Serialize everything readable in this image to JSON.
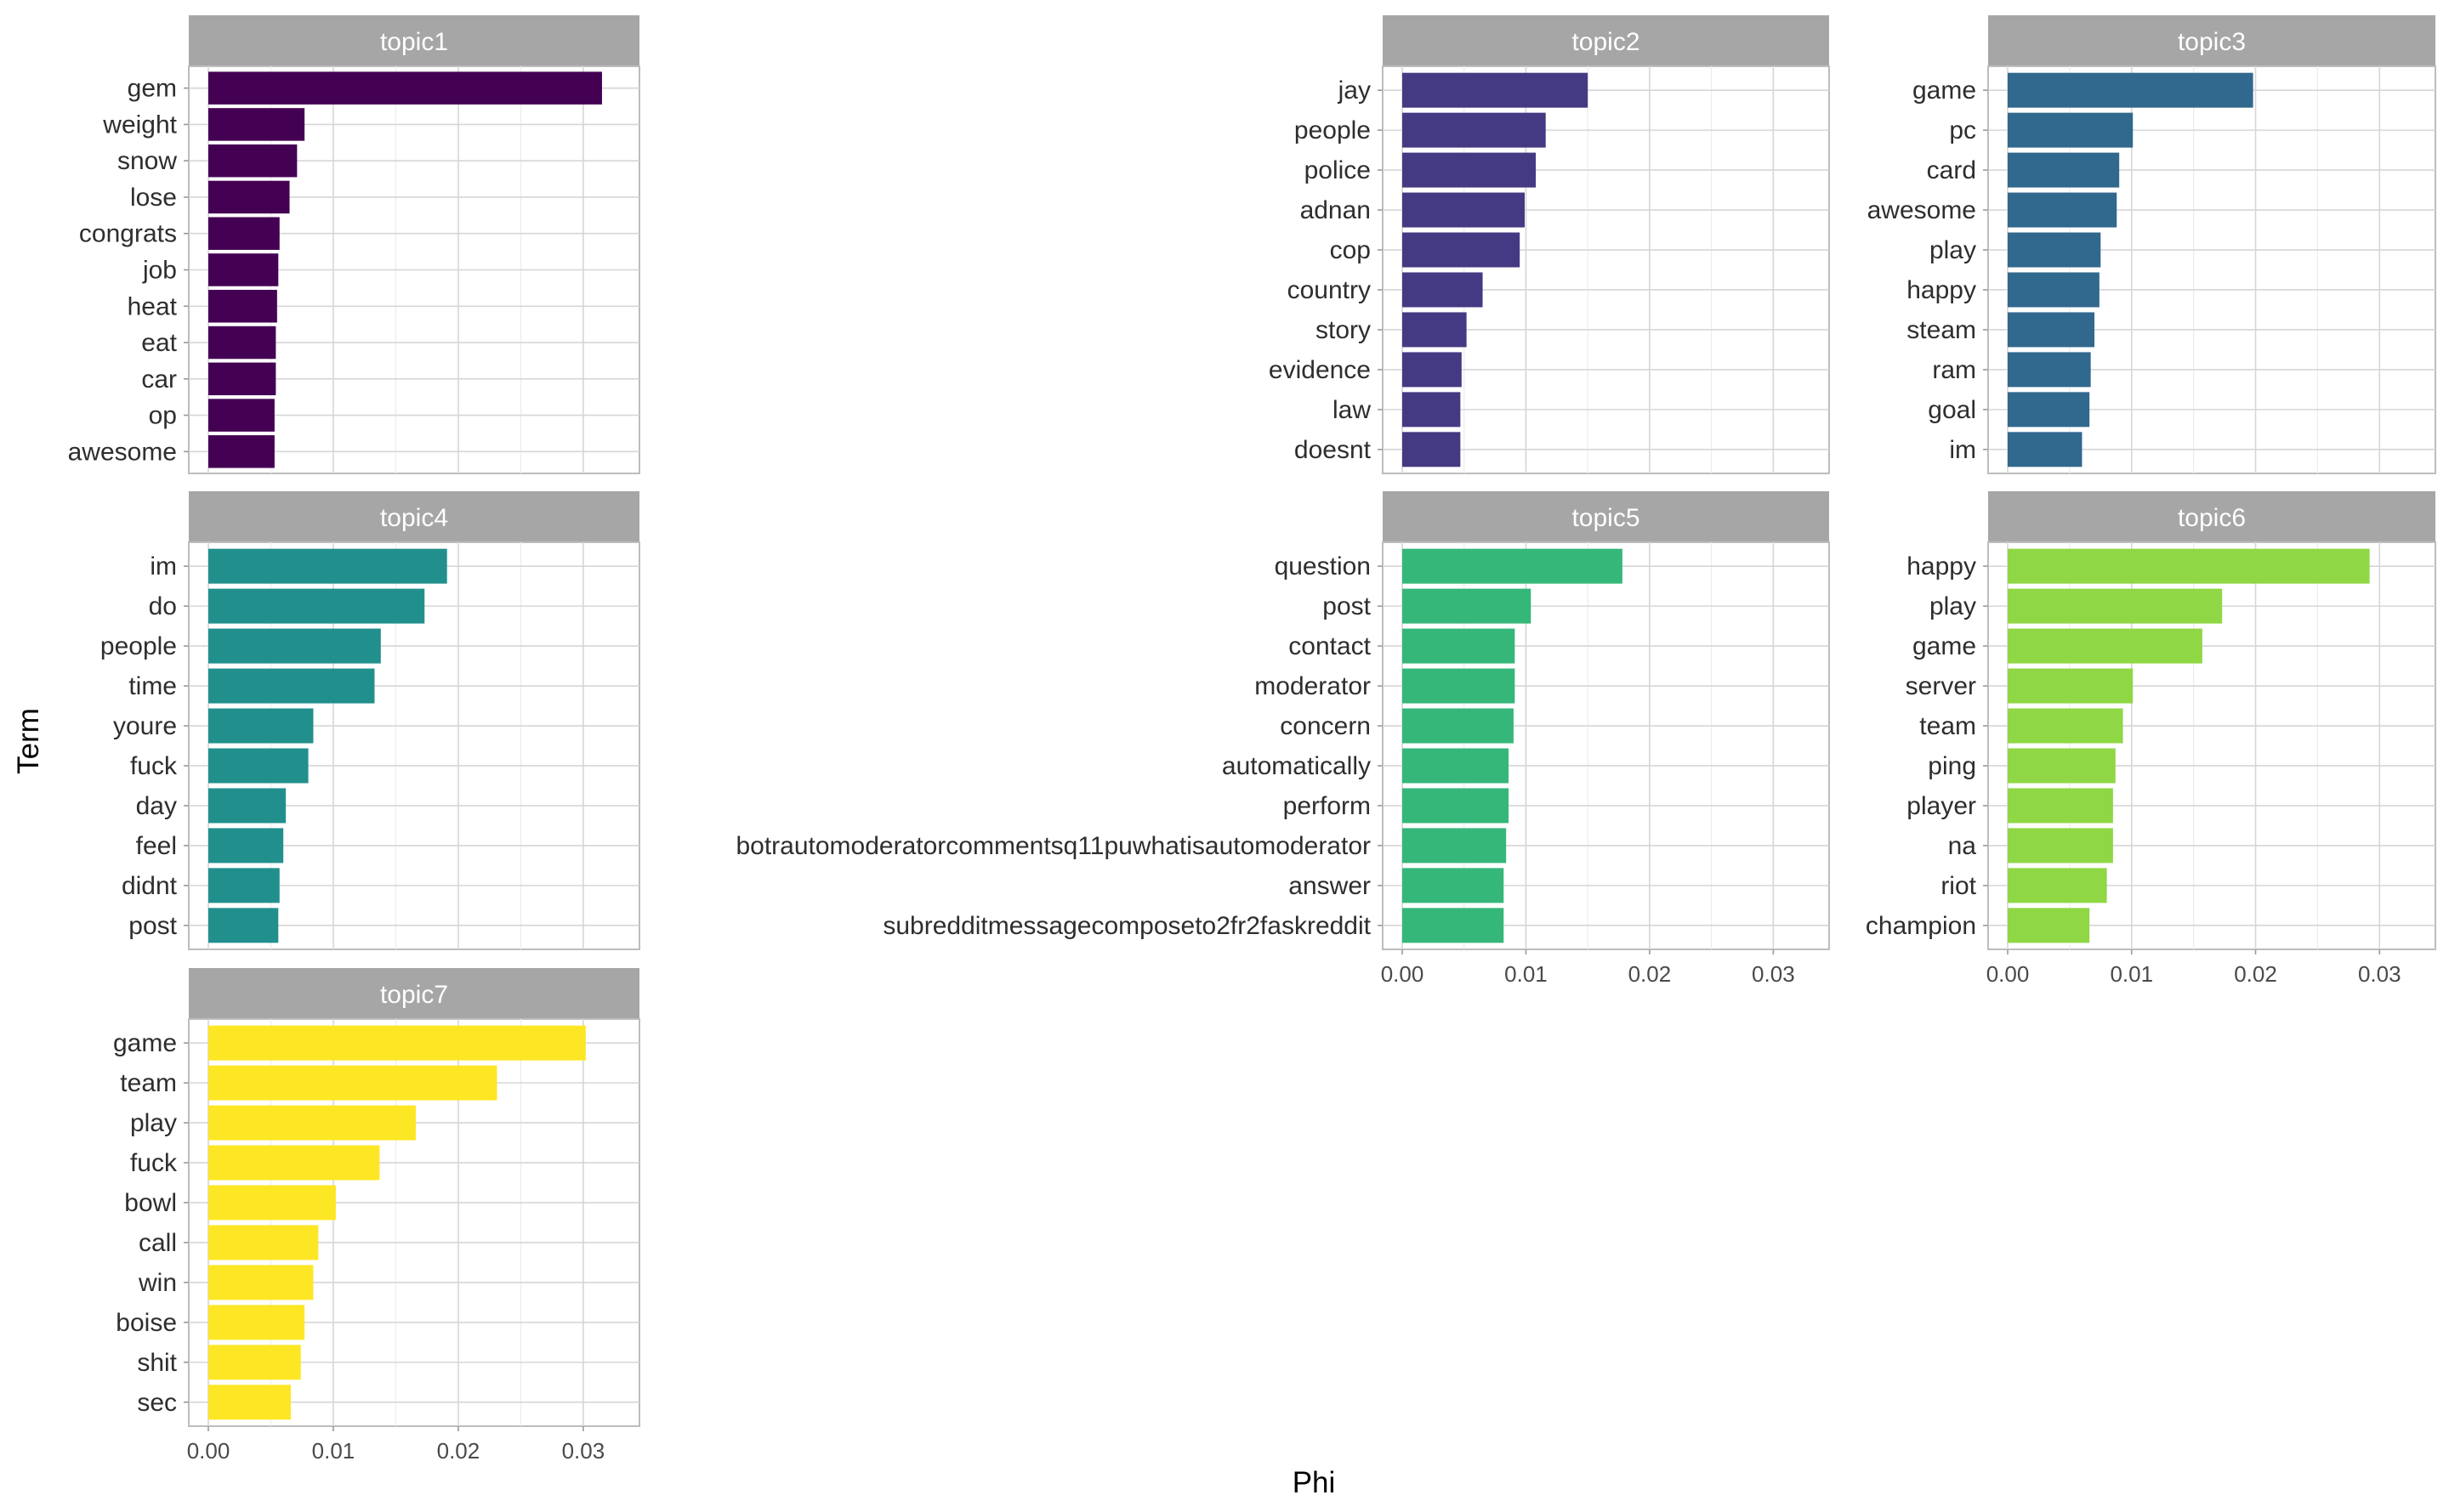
{
  "chart_data": {
    "type": "bar",
    "orientation": "horizontal",
    "layout": "faceted-3x3",
    "xlabel": "Phi",
    "ylabel": "Term",
    "xlim": [
      0,
      0.033
    ],
    "x_ticks": [
      0.0,
      0.01,
      0.02,
      0.03
    ],
    "x_tick_labels": [
      "0.00",
      "0.01",
      "0.02",
      "0.03"
    ],
    "grid": true,
    "facets": [
      {
        "name": "topic1",
        "color": "#440154",
        "terms": [
          "gem",
          "weight",
          "snow",
          "lose",
          "congrats",
          "job",
          "heat",
          "eat",
          "car",
          "op",
          "awesome"
        ],
        "values": [
          0.0315,
          0.0077,
          0.0071,
          0.0065,
          0.0057,
          0.0056,
          0.0055,
          0.0054,
          0.0054,
          0.0053,
          0.0053
        ]
      },
      {
        "name": "topic2",
        "color": "#443a83",
        "terms": [
          "jay",
          "people",
          "police",
          "adnan",
          "cop",
          "country",
          "story",
          "evidence",
          "law",
          "doesnt"
        ],
        "values": [
          0.015,
          0.0116,
          0.0108,
          0.0099,
          0.0095,
          0.0065,
          0.0052,
          0.0048,
          0.0047,
          0.0047
        ]
      },
      {
        "name": "topic3",
        "color": "#31688e",
        "terms": [
          "game",
          "pc",
          "card",
          "awesome",
          "play",
          "happy",
          "steam",
          "ram",
          "goal",
          "im"
        ],
        "values": [
          0.0198,
          0.0101,
          0.009,
          0.0088,
          0.0075,
          0.0074,
          0.007,
          0.0067,
          0.0066,
          0.006
        ]
      },
      {
        "name": "topic4",
        "color": "#21908d",
        "terms": [
          "im",
          "do",
          "people",
          "time",
          "youre",
          "fuck",
          "day",
          "feel",
          "didnt",
          "post"
        ],
        "values": [
          0.0191,
          0.0173,
          0.0138,
          0.0133,
          0.0084,
          0.008,
          0.0062,
          0.006,
          0.0057,
          0.0056
        ]
      },
      {
        "name": "topic5",
        "color": "#35b779",
        "terms": [
          "question",
          "post",
          "contact",
          "moderator",
          "concern",
          "automatically",
          "perform",
          "botrautomoderatorcommentsq11puwhatisautomoderator",
          "answer",
          "subredditmessagecomposeto2fr2faskreddit"
        ],
        "values": [
          0.0178,
          0.0104,
          0.0091,
          0.0091,
          0.009,
          0.0086,
          0.0086,
          0.0084,
          0.0082,
          0.0082
        ]
      },
      {
        "name": "topic6",
        "color": "#8fd744",
        "terms": [
          "happy",
          "play",
          "game",
          "server",
          "team",
          "ping",
          "player",
          "na",
          "riot",
          "champion"
        ],
        "values": [
          0.0292,
          0.0173,
          0.0157,
          0.0101,
          0.0093,
          0.0087,
          0.0085,
          0.0085,
          0.008,
          0.0066
        ]
      },
      {
        "name": "topic7",
        "color": "#fde725",
        "terms": [
          "game",
          "team",
          "play",
          "fuck",
          "bowl",
          "call",
          "win",
          "boise",
          "shit",
          "sec"
        ],
        "values": [
          0.0302,
          0.0231,
          0.0166,
          0.0137,
          0.0102,
          0.0088,
          0.0084,
          0.0077,
          0.0074,
          0.0066
        ]
      }
    ]
  }
}
